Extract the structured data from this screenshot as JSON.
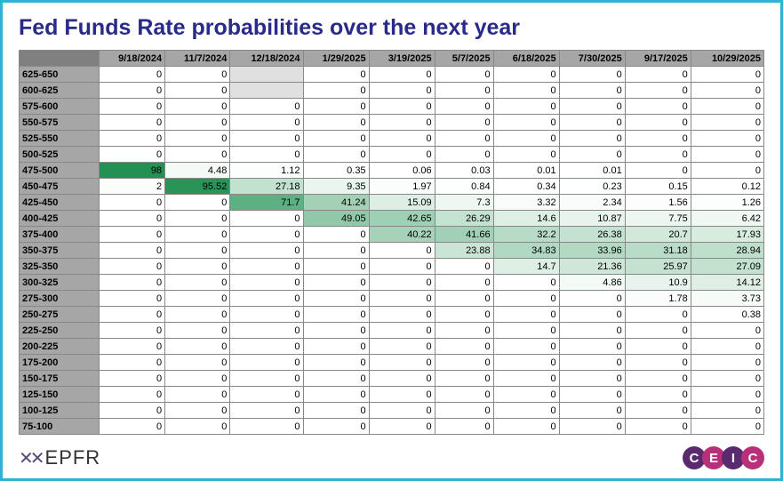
{
  "title": "Fed Funds Rate probabilities over the next year",
  "title_color": "#2a2a8a",
  "table": {
    "header_bg": "#a6a6a6",
    "corner_bg": "#808080",
    "border_color": "#888888",
    "font_size": 11,
    "row_header_bg": "#a6a6a6",
    "heat_gradient": {
      "low": "#ffffff",
      "high": "#1f8f4f"
    },
    "empty_cell_bg": "#e0e0e0",
    "columns": [
      "9/18/2024",
      "11/7/2024",
      "12/18/2024",
      "1/29/2025",
      "3/19/2025",
      "5/7/2025",
      "6/18/2025",
      "7/30/2025",
      "9/17/2025",
      "10/29/2025"
    ],
    "rows": [
      {
        "label": "625-650",
        "values": [
          "0",
          "0",
          "",
          "0",
          "0",
          "0",
          "0",
          "0",
          "0",
          "0"
        ]
      },
      {
        "label": "600-625",
        "values": [
          "0",
          "0",
          "",
          "0",
          "0",
          "0",
          "0",
          "0",
          "0",
          "0"
        ]
      },
      {
        "label": "575-600",
        "values": [
          "0",
          "0",
          "0",
          "0",
          "0",
          "0",
          "0",
          "0",
          "0",
          "0"
        ]
      },
      {
        "label": "550-575",
        "values": [
          "0",
          "0",
          "0",
          "0",
          "0",
          "0",
          "0",
          "0",
          "0",
          "0"
        ]
      },
      {
        "label": "525-550",
        "values": [
          "0",
          "0",
          "0",
          "0",
          "0",
          "0",
          "0",
          "0",
          "0",
          "0"
        ]
      },
      {
        "label": "500-525",
        "values": [
          "0",
          "0",
          "0",
          "0",
          "0",
          "0",
          "0",
          "0",
          "0",
          "0"
        ]
      },
      {
        "label": "475-500",
        "values": [
          "98",
          "4.48",
          "1.12",
          "0.35",
          "0.06",
          "0.03",
          "0.01",
          "0.01",
          "0",
          "0"
        ]
      },
      {
        "label": "450-475",
        "values": [
          "2",
          "95.52",
          "27.18",
          "9.35",
          "1.97",
          "0.84",
          "0.34",
          "0.23",
          "0.15",
          "0.12"
        ]
      },
      {
        "label": "425-450",
        "values": [
          "0",
          "0",
          "71.7",
          "41.24",
          "15.09",
          "7.3",
          "3.32",
          "2.34",
          "1.56",
          "1.26"
        ]
      },
      {
        "label": "400-425",
        "values": [
          "0",
          "0",
          "0",
          "49.05",
          "42.65",
          "26.29",
          "14.6",
          "10.87",
          "7.75",
          "6.42"
        ]
      },
      {
        "label": "375-400",
        "values": [
          "0",
          "0",
          "0",
          "0",
          "40.22",
          "41.66",
          "32.2",
          "26.38",
          "20.7",
          "17.93"
        ]
      },
      {
        "label": "350-375",
        "values": [
          "0",
          "0",
          "0",
          "0",
          "0",
          "23.88",
          "34.83",
          "33.96",
          "31.18",
          "28.94"
        ]
      },
      {
        "label": "325-350",
        "values": [
          "0",
          "0",
          "0",
          "0",
          "0",
          "0",
          "14.7",
          "21.36",
          "25.97",
          "27.09"
        ]
      },
      {
        "label": "300-325",
        "values": [
          "0",
          "0",
          "0",
          "0",
          "0",
          "0",
          "0",
          "4.86",
          "10.9",
          "14.12"
        ]
      },
      {
        "label": "275-300",
        "values": [
          "0",
          "0",
          "0",
          "0",
          "0",
          "0",
          "0",
          "0",
          "1.78",
          "3.73"
        ]
      },
      {
        "label": "250-275",
        "values": [
          "0",
          "0",
          "0",
          "0",
          "0",
          "0",
          "0",
          "0",
          "0",
          "0.38"
        ]
      },
      {
        "label": "225-250",
        "values": [
          "0",
          "0",
          "0",
          "0",
          "0",
          "0",
          "0",
          "0",
          "0",
          "0"
        ]
      },
      {
        "label": "200-225",
        "values": [
          "0",
          "0",
          "0",
          "0",
          "0",
          "0",
          "0",
          "0",
          "0",
          "0"
        ]
      },
      {
        "label": "175-200",
        "values": [
          "0",
          "0",
          "0",
          "0",
          "0",
          "0",
          "0",
          "0",
          "0",
          "0"
        ]
      },
      {
        "label": "150-175",
        "values": [
          "0",
          "0",
          "0",
          "0",
          "0",
          "0",
          "0",
          "0",
          "0",
          "0"
        ]
      },
      {
        "label": "125-150",
        "values": [
          "0",
          "0",
          "0",
          "0",
          "0",
          "0",
          "0",
          "0",
          "0",
          "0"
        ]
      },
      {
        "label": "100-125",
        "values": [
          "0",
          "0",
          "0",
          "0",
          "0",
          "0",
          "0",
          "0",
          "0",
          "0"
        ]
      },
      {
        "label": "75-100",
        "values": [
          "0",
          "0",
          "0",
          "0",
          "0",
          "0",
          "0",
          "0",
          "0",
          "0"
        ]
      }
    ]
  },
  "logos": {
    "epfr": {
      "icon": "✕✕",
      "text": "EPFR",
      "icon_color": "#5a4a7a",
      "text_color": "#333333"
    },
    "ceic": {
      "letters": [
        "C",
        "E",
        "I",
        "C"
      ],
      "colors": [
        "#5a2a6e",
        "#b8307a",
        "#5a2a6e",
        "#b8307a"
      ]
    }
  }
}
